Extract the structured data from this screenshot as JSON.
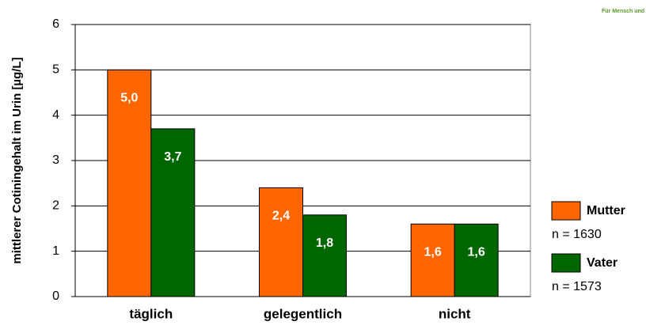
{
  "chart_data": {
    "type": "bar",
    "logo_text": "Für Mensch und",
    "y_label": "mittlerer Cotiningehalt im Urin [µg/L]",
    "categories": [
      "täglich",
      "gelegentlich",
      "nicht"
    ],
    "series": [
      {
        "name": "Mutter",
        "note": "n = 1630",
        "color": "#ff6600",
        "values": [
          5.0,
          2.4,
          1.6
        ],
        "value_labels": [
          "5,0",
          "2,4",
          "1,6"
        ]
      },
      {
        "name": "Vater",
        "note": "n = 1573",
        "color": "#006600",
        "values": [
          3.7,
          1.8,
          1.6
        ],
        "value_labels": [
          "3,7",
          "1,8",
          "1,6"
        ]
      }
    ],
    "ylim": [
      0,
      6
    ],
    "yticks": [
      0,
      1,
      2,
      3,
      4,
      5,
      6
    ],
    "grid": true,
    "legend": "right"
  }
}
